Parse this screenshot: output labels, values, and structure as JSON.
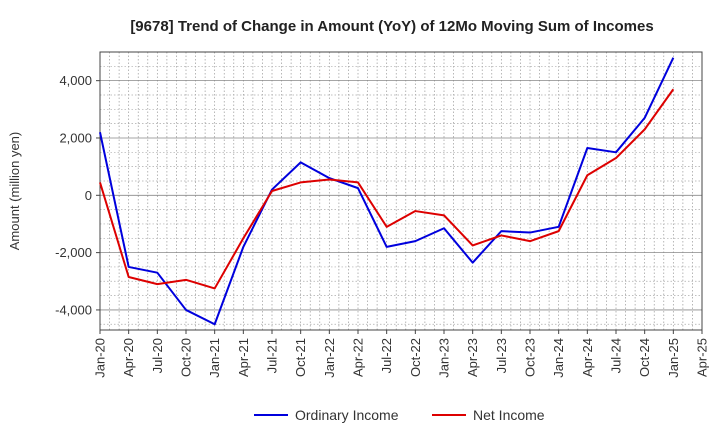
{
  "chart_data": {
    "type": "line",
    "title": "[9678]  Trend of Change in Amount (YoY) of 12Mo Moving Sum of Incomes",
    "ylabel": "Amount (million yen)",
    "xlabel": "",
    "categories": [
      "Jan-20",
      "Apr-20",
      "Jul-20",
      "Oct-20",
      "Jan-21",
      "Apr-21",
      "Jul-21",
      "Oct-21",
      "Jan-22",
      "Apr-22",
      "Jul-22",
      "Oct-22",
      "Jan-23",
      "Apr-23",
      "Jul-23",
      "Oct-23",
      "Jan-24",
      "Apr-24",
      "Jul-24",
      "Oct-24",
      "Jan-25",
      "Apr-25"
    ],
    "ylim": [
      -4700,
      5000
    ],
    "yticks": [
      -4000,
      -2000,
      0,
      2000,
      4000
    ],
    "ytick_labels": [
      "-4,000",
      "-2,000",
      "0",
      "2,000",
      "4,000"
    ],
    "grid": true,
    "legend_position": "bottom-center",
    "series": [
      {
        "name": "Ordinary Income",
        "color": "#0000dd",
        "values": [
          2200,
          -2500,
          -2700,
          -4000,
          -4500,
          -1800,
          200,
          1150,
          600,
          250,
          -1800,
          -1600,
          -1150,
          -2350,
          -1250,
          -1300,
          -1100,
          1650,
          1500,
          2700,
          4800,
          null
        ]
      },
      {
        "name": "Net Income",
        "color": "#dd0000",
        "values": [
          450,
          -2850,
          -3100,
          -2950,
          -3250,
          -1500,
          150,
          450,
          550,
          450,
          -1100,
          -550,
          -700,
          -1750,
          -1400,
          -1600,
          -1250,
          700,
          1300,
          2300,
          3700,
          null
        ]
      }
    ]
  }
}
